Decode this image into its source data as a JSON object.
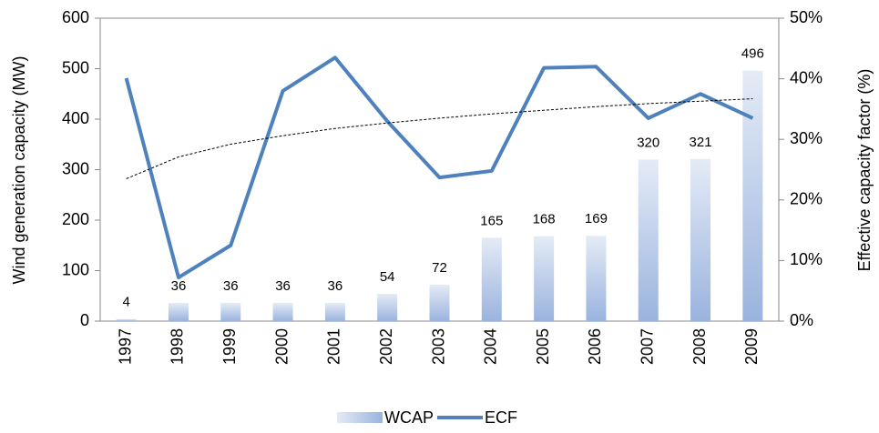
{
  "chart_data": {
    "type": "bar-line",
    "ylabel": "Wind generation capacity (MW)",
    "y2label": "Effective capacity factor (%)",
    "categories": [
      "1997",
      "1998",
      "1999",
      "2000",
      "2001",
      "2002",
      "2003",
      "2004",
      "2005",
      "2006",
      "2007",
      "2008",
      "2009"
    ],
    "series": [
      {
        "name": "WCAP",
        "type": "bar",
        "color": "#9ab3de",
        "values": [
          4,
          36,
          36,
          36,
          36,
          54,
          72,
          165,
          168,
          169,
          320,
          321,
          496
        ]
      },
      {
        "name": "ECF",
        "type": "line",
        "axis": "y2",
        "color": "#4f81bd",
        "values": [
          40.1,
          7.2,
          12.5,
          38,
          43.5,
          33,
          23.7,
          24.8,
          41.8,
          42,
          33.5,
          37.5,
          33.5
        ]
      }
    ],
    "trendline": {
      "axis": "y2",
      "color": "#000000",
      "values": [
        23.5,
        27.1,
        29.2,
        30.6,
        31.8,
        32.7,
        33.5,
        34.2,
        34.8,
        35.4,
        35.9,
        36.3,
        36.7
      ]
    },
    "ylim": [
      0,
      600
    ],
    "yticks": [
      0,
      100,
      200,
      300,
      400,
      500,
      600
    ],
    "y2lim": [
      0,
      50
    ],
    "y2ticks": [
      {
        "value": 0,
        "label": "0%"
      },
      {
        "value": 10,
        "label": "10%"
      },
      {
        "value": 20,
        "label": "20%"
      },
      {
        "value": 30,
        "label": "30%"
      },
      {
        "value": 40,
        "label": "40%"
      },
      {
        "value": 50,
        "label": "50%"
      }
    ]
  }
}
